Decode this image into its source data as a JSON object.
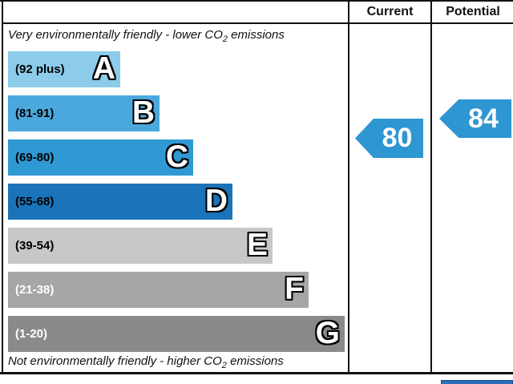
{
  "header": {
    "current_label": "Current",
    "potential_label": "Potential"
  },
  "notes": {
    "top": {
      "pre": "Very environmentally friendly - lower CO",
      "sub": "2",
      "post": " emissions"
    },
    "bottom": {
      "pre": "Not environmentally friendly - higher CO",
      "sub": "2",
      "post": " emissions"
    }
  },
  "bands": [
    {
      "letter": "A",
      "range": "(92 plus)",
      "color": "#8ccbea"
    },
    {
      "letter": "B",
      "range": "(81-91)",
      "color": "#4aa8dc"
    },
    {
      "letter": "C",
      "range": "(69-80)",
      "color": "#2f99d3"
    },
    {
      "letter": "D",
      "range": "(55-68)",
      "color": "#1b74ba"
    },
    {
      "letter": "E",
      "range": "(39-54)",
      "color": "#c7c7c7"
    },
    {
      "letter": "F",
      "range": "(21-38)",
      "color": "#a6a6a6"
    },
    {
      "letter": "G",
      "range": "(1-20)",
      "color": "#8a8a8a"
    }
  ],
  "ratings": {
    "current": "80",
    "potential": "84"
  },
  "colors": {
    "arrow": "#2e96d1",
    "rule": "#111111",
    "next_section_accent": "#2a6fbc"
  },
  "chart_data": {
    "type": "bar",
    "title": "Environmental Impact (CO2) Rating",
    "categories": [
      "A",
      "B",
      "C",
      "D",
      "E",
      "F",
      "G"
    ],
    "ranges": [
      "92 plus",
      "81-91",
      "69-80",
      "55-68",
      "39-54",
      "21-38",
      "1-20"
    ],
    "columns": [
      "Current",
      "Potential"
    ],
    "values": {
      "current": 80,
      "potential": 84
    },
    "current_band": "C",
    "potential_band": "B",
    "top_label": "Very environmentally friendly - lower CO2 emissions",
    "bottom_label": "Not environmentally friendly - higher CO2 emissions"
  }
}
